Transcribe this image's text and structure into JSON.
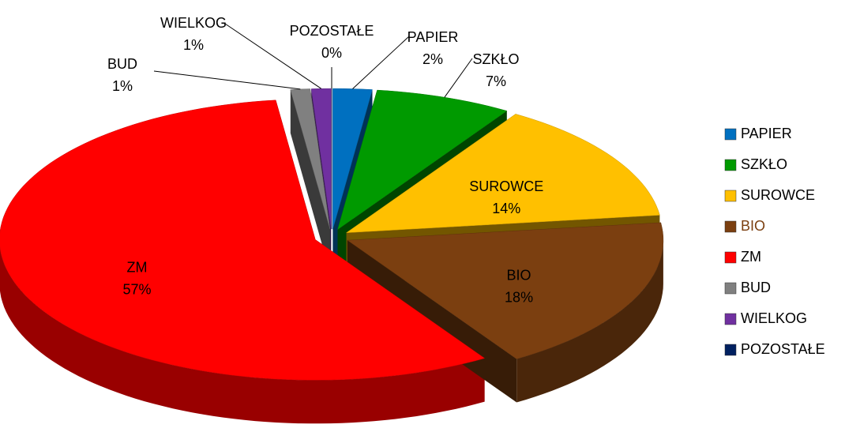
{
  "chart_data": {
    "type": "pie3d",
    "categories": [
      "PAPIER",
      "SZKŁO",
      "SUROWCE",
      "BIO",
      "ZM",
      "BUD",
      "WIELKOG",
      "POZOSTAŁE"
    ],
    "values": [
      2,
      7,
      14,
      18,
      57,
      1,
      1,
      0
    ],
    "value_labels": [
      "2%",
      "7%",
      "14%",
      "18%",
      "57%",
      "1%",
      "1%",
      "0%"
    ],
    "colors": [
      "#0070c0",
      "#009a00",
      "#ffc000",
      "#7b3f10",
      "#ff0000",
      "#808080",
      "#7030a0",
      "#002060"
    ],
    "legend": "right"
  }
}
